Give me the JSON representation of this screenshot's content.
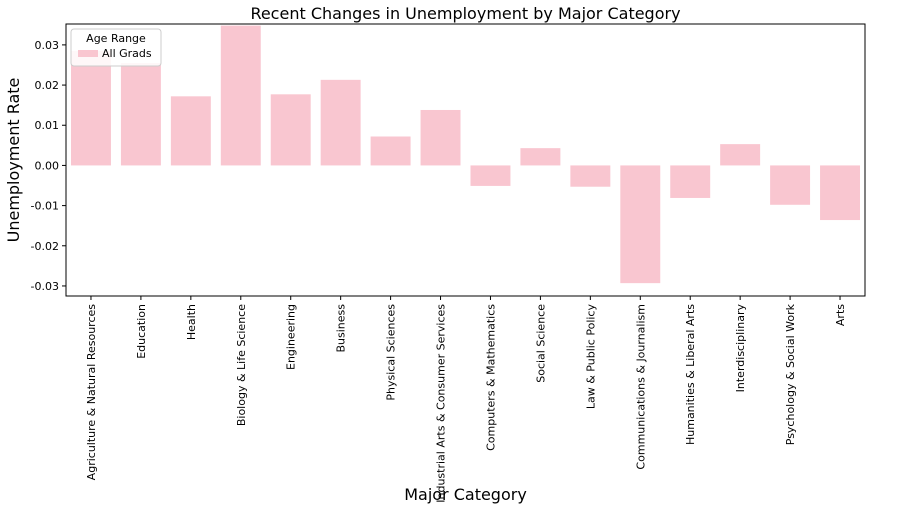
{
  "chart_data": {
    "type": "bar",
    "title": "Recent Changes in Unemployment by Major Category",
    "xlabel": "Major Category",
    "ylabel": "Unemployment Rate",
    "categories": [
      "Agriculture & Natural Resources",
      "Education",
      "Health",
      "Biology & Life Science",
      "Engineering",
      "Business",
      "Physical Sciences",
      "Industrial Arts & Consumer Services",
      "Computers & Mathematics",
      "Social Science",
      "Law & Public Policy",
      "Communications & Journalism",
      "Humanities & Liberal Arts",
      "Interdisciplinary",
      "Psychology & Social Work",
      "Arts"
    ],
    "series": [
      {
        "name": "All Grads",
        "color": "#f9c6d0",
        "values": [
          0.0285,
          0.0255,
          0.0172,
          0.0348,
          0.0177,
          0.0213,
          0.0072,
          0.0138,
          -0.0051,
          0.0043,
          -0.0053,
          -0.0293,
          -0.0081,
          0.0053,
          -0.0098,
          -0.0136
        ]
      }
    ],
    "ylim": [
      -0.0325,
      0.0352
    ],
    "yticks": [
      -0.03,
      -0.02,
      -0.01,
      0.0,
      0.01,
      0.02,
      0.03
    ],
    "ytick_labels": [
      "-0.03",
      "-0.02",
      "-0.01",
      "0.00",
      "0.01",
      "0.02",
      "0.03"
    ],
    "grid": false,
    "legend": {
      "title": "Age Range",
      "placement": "top-left"
    }
  }
}
